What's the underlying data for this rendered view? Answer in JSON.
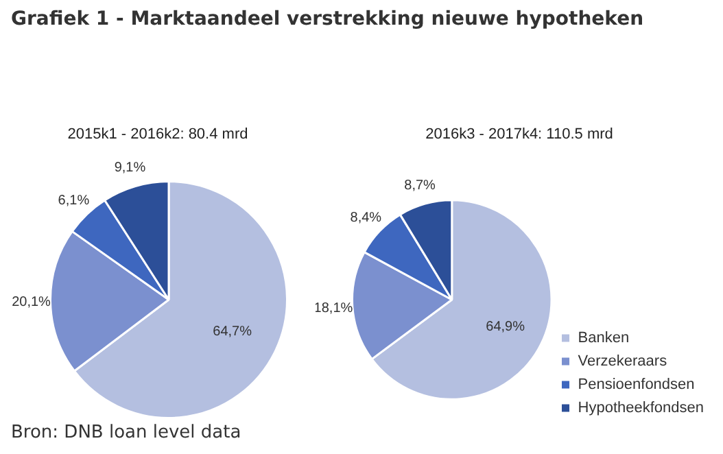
{
  "chart_data": [
    {
      "type": "pie",
      "title": "Grafiek 1 - Marktaandeel verstrekking nieuwe hypotheken",
      "subtitle": "2015k1 - 2016k2: 80.4 mrd",
      "categories": [
        null,
        null,
        null,
        null
      ],
      "values": [
        64.7,
        20.1,
        6.1,
        9.1
      ],
      "value_labels": [
        "64,7%",
        "20,1%",
        "6,1%",
        "9,1%"
      ],
      "colors": [
        "#b4bfe0",
        "#7b90cf",
        "#3e67bf",
        "#2c4f98"
      ],
      "legend": false
    },
    {
      "type": "pie",
      "subtitle": "2016k3 - 2017k4: 110.5 mrd",
      "categories": [
        "Banken",
        "Verzekeraars",
        "Pensioenfondsen",
        "Hypotheekfondsen"
      ],
      "values": [
        64.9,
        18.1,
        8.4,
        8.7
      ],
      "value_labels": [
        "64,9%",
        "18,1%",
        "8,4%",
        "8,7%"
      ],
      "colors": [
        "#b4bfe0",
        "#7b90cf",
        "#3e67bf",
        "#2c4f98"
      ],
      "legend": "bottom right",
      "annotations": [
        "Bron: DNB loan level data"
      ]
    }
  ]
}
